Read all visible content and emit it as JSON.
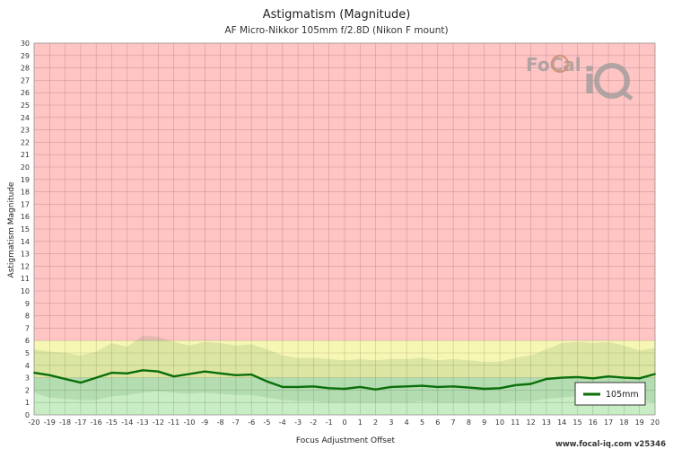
{
  "chart_data": {
    "type": "line",
    "title": "Astigmatism (Magnitude)",
    "subtitle": "AF Micro-Nikkor 105mm f/2.8D (Nikon F mount)",
    "xlabel": "Focus Adjustment Offset",
    "ylabel": "Astigmatism Magnitude",
    "xlim": [
      -20,
      20
    ],
    "ylim": [
      0,
      30
    ],
    "grid": true,
    "legend_position": "bottom-right",
    "zones": [
      {
        "from": 0,
        "to": 3,
        "color": "#c8ecc4"
      },
      {
        "from": 3,
        "to": 6,
        "color": "#f7f7b4"
      },
      {
        "from": 6,
        "to": 30,
        "color": "#ffc4c4"
      }
    ],
    "x": [
      -20,
      -19,
      -18,
      -17,
      -16,
      -15,
      -14,
      -13,
      -12,
      -11,
      -10,
      -9,
      -8,
      -7,
      -6,
      -5,
      -4,
      -3,
      -2,
      -1,
      0,
      1,
      2,
      3,
      4,
      5,
      6,
      7,
      8,
      9,
      10,
      11,
      12,
      13,
      14,
      15,
      16,
      17,
      18,
      19,
      20
    ],
    "series": [
      {
        "name": "105mm",
        "color": "#0a6e0a",
        "values": [
          3.4,
          3.2,
          2.9,
          2.6,
          3.0,
          3.4,
          3.35,
          3.6,
          3.5,
          3.1,
          3.3,
          3.5,
          3.35,
          3.2,
          3.25,
          2.7,
          2.25,
          2.25,
          2.3,
          2.15,
          2.1,
          2.25,
          2.05,
          2.25,
          2.3,
          2.35,
          2.25,
          2.3,
          2.2,
          2.1,
          2.15,
          2.4,
          2.5,
          2.9,
          3.0,
          3.05,
          2.95,
          3.1,
          3.0,
          2.95,
          3.3
        ],
        "band_upper": [
          5.3,
          5.1,
          5.0,
          4.8,
          5.1,
          5.8,
          5.5,
          6.4,
          6.3,
          5.9,
          5.6,
          5.9,
          5.8,
          5.6,
          5.7,
          5.3,
          4.8,
          4.6,
          4.6,
          4.5,
          4.4,
          4.5,
          4.4,
          4.5,
          4.5,
          4.6,
          4.4,
          4.5,
          4.4,
          4.3,
          4.3,
          4.6,
          4.8,
          5.3,
          5.8,
          5.9,
          5.8,
          5.9,
          5.6,
          5.2,
          5.4
        ],
        "band_lower": [
          1.8,
          1.4,
          1.3,
          1.2,
          1.2,
          1.5,
          1.6,
          1.8,
          1.9,
          1.8,
          1.7,
          1.8,
          1.7,
          1.6,
          1.6,
          1.4,
          1.2,
          1.1,
          1.1,
          1.0,
          1.0,
          1.0,
          1.0,
          1.0,
          1.0,
          1.1,
          1.0,
          1.0,
          1.0,
          1.0,
          1.0,
          1.1,
          1.1,
          1.3,
          1.4,
          1.5,
          1.4,
          1.5,
          1.4,
          1.3,
          1.0
        ]
      }
    ]
  },
  "logo": {
    "text": "FoCal iQ"
  },
  "footer": {
    "text": "www.focal-iq.com  v25346"
  }
}
